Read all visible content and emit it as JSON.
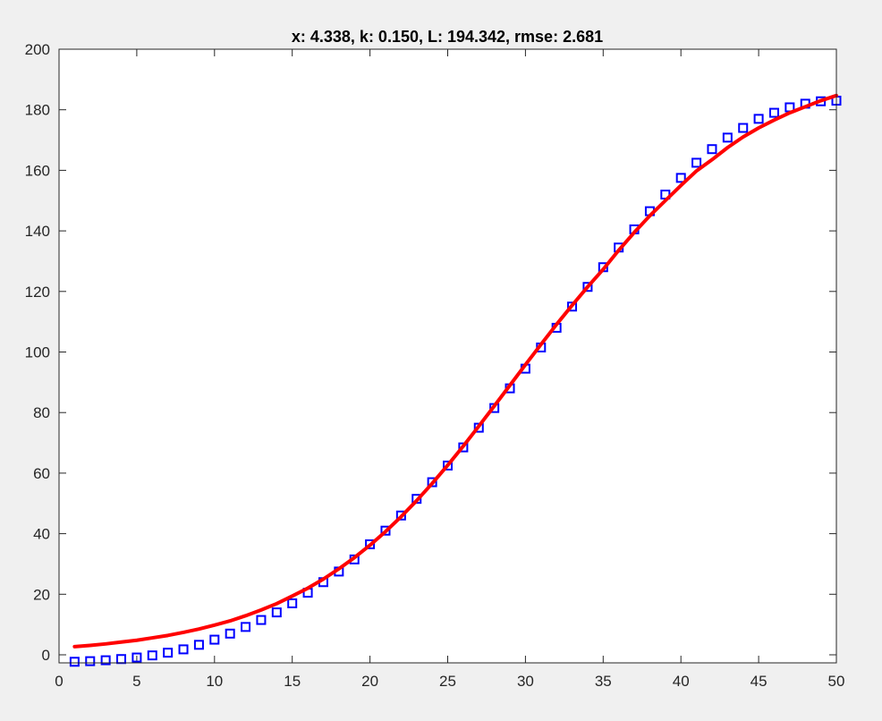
{
  "chart_data": {
    "type": "scatter",
    "title": "x: 4.338, k: 0.150, L: 194.342, rmse: 2.681",
    "xlabel": "",
    "ylabel": "",
    "xlim": [
      0,
      50
    ],
    "ylim": [
      -3,
      200
    ],
    "grid": false,
    "x_ticks": [
      0,
      5,
      10,
      15,
      20,
      25,
      30,
      35,
      40,
      45,
      50
    ],
    "y_ticks": [
      0,
      20,
      40,
      60,
      80,
      100,
      120,
      140,
      160,
      180,
      200
    ],
    "series": [
      {
        "marker": "square",
        "color": "#0000ff",
        "x": [
          1,
          2,
          3,
          4,
          5,
          6,
          7,
          8,
          9,
          10,
          11,
          12,
          13,
          14,
          15,
          16,
          17,
          18,
          19,
          20,
          21,
          22,
          23,
          24,
          25,
          26,
          27,
          28,
          29,
          30,
          31,
          32,
          33,
          34,
          35,
          36,
          37,
          38,
          39,
          40,
          41,
          42,
          43,
          44,
          45,
          46,
          47,
          48,
          49,
          50
        ],
        "y": [
          -2.3,
          -2.1,
          -1.8,
          -1.4,
          -0.9,
          -0.2,
          0.7,
          1.8,
          3.3,
          5.0,
          7.0,
          9.2,
          11.5,
          14.0,
          17.0,
          20.5,
          24.0,
          27.5,
          31.5,
          36.5,
          41.0,
          46.0,
          51.5,
          57.0,
          62.5,
          68.5,
          75.0,
          81.5,
          88.0,
          94.5,
          101.5,
          108.0,
          115.0,
          121.5,
          128.0,
          134.5,
          140.5,
          146.5,
          152.0,
          157.5,
          162.5,
          167.0,
          170.8,
          174.0,
          177.0,
          179.0,
          180.8,
          182.0,
          182.8,
          183.0
        ]
      },
      {
        "line": "solid",
        "color": "#ff0000",
        "x": [
          1,
          2,
          3,
          4,
          5,
          6,
          7,
          8,
          9,
          10,
          11,
          12,
          13,
          14,
          15,
          16,
          17,
          18,
          19,
          20,
          21,
          22,
          23,
          24,
          25,
          26,
          27,
          28,
          29,
          30,
          31,
          32,
          33,
          34,
          35,
          36,
          37,
          38,
          39,
          40,
          41,
          42,
          43,
          44,
          45,
          46,
          47,
          48,
          49,
          50
        ],
        "y": [
          2.7,
          3.1,
          3.6,
          4.2,
          4.8,
          5.6,
          6.4,
          7.4,
          8.5,
          9.8,
          11.2,
          12.9,
          14.8,
          16.9,
          19.4,
          22.0,
          25.0,
          28.4,
          32.1,
          36.2,
          40.7,
          45.6,
          50.9,
          56.6,
          62.6,
          68.9,
          75.5,
          82.2,
          89.0,
          95.8,
          102.5,
          109.1,
          115.4,
          121.5,
          127.3,
          133.6,
          139.5,
          145.0,
          150.0,
          155.0,
          159.8,
          163.5,
          167.5,
          171.0,
          174.0,
          176.6,
          179.0,
          181.0,
          183.0,
          184.7
        ]
      }
    ]
  }
}
